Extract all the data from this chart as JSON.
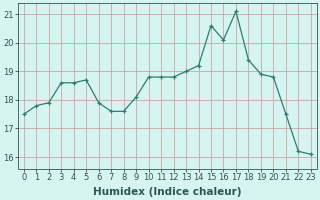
{
  "x": [
    0,
    1,
    2,
    3,
    4,
    5,
    6,
    7,
    8,
    9,
    10,
    11,
    12,
    13,
    14,
    15,
    16,
    17,
    18,
    19,
    20,
    21,
    22,
    23
  ],
  "y": [
    17.5,
    17.8,
    17.9,
    18.6,
    18.6,
    18.7,
    17.9,
    17.6,
    17.6,
    18.1,
    18.8,
    18.8,
    18.8,
    19.0,
    19.2,
    20.6,
    20.1,
    21.1,
    19.4,
    18.9,
    18.8,
    17.5,
    16.2,
    16.1
  ],
  "line_color": "#2e7d6e",
  "marker": "+",
  "marker_size": 3,
  "bg_color": "#d6f5f0",
  "grid_color": "#c8a8a8",
  "xlabel": "Humidex (Indice chaleur)",
  "ylim": [
    15.6,
    21.4
  ],
  "xlim": [
    -0.5,
    23.5
  ],
  "yticks": [
    16,
    17,
    18,
    19,
    20,
    21
  ],
  "xticks": [
    0,
    1,
    2,
    3,
    4,
    5,
    6,
    7,
    8,
    9,
    10,
    11,
    12,
    13,
    14,
    15,
    16,
    17,
    18,
    19,
    20,
    21,
    22,
    23
  ],
  "font_color": "#2e5555",
  "tick_fontsize": 6,
  "xlabel_fontsize": 7.5
}
